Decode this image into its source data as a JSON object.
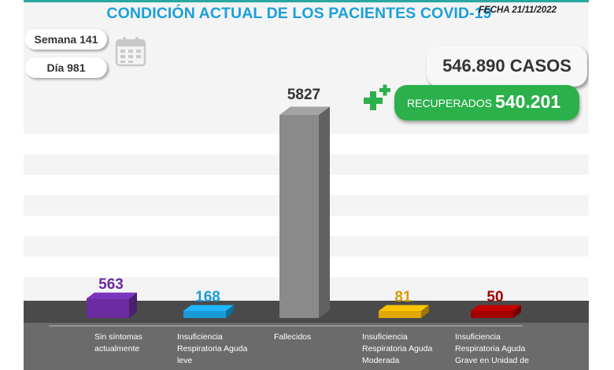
{
  "header": {
    "title": "CONDICIÓN ACTUAL DE LOS PACIENTES COVID-19",
    "date": "FECHA 21/11/2022"
  },
  "info": {
    "week": "Semana 141",
    "day": "Día 981"
  },
  "totals": {
    "cases": "546.890 CASOS",
    "recovered_label": "RECUPERADOS",
    "recovered_value": "540.201"
  },
  "icons": {
    "calendar": "calendar-icon",
    "plus": "plus-icon"
  },
  "colors": {
    "title": "#1aa0d8",
    "recovered_bg": "#2bb04a"
  },
  "chart_data": {
    "type": "bar",
    "categories": [
      [
        "Sin síntomas",
        "actualmente"
      ],
      [
        "Insuficiencia",
        "Respiratoria Aguda",
        "leve"
      ],
      [
        "Fallecidos"
      ],
      [
        "Insuficiencia",
        "Respiratoria Aguda",
        "Moderada"
      ],
      [
        "Insuficiencia",
        "Respiratoria Aguda",
        "Grave en Unidad de"
      ]
    ],
    "values": [
      563,
      168,
      5827,
      81,
      50
    ],
    "value_labels": [
      "563",
      "168",
      "5827",
      "81",
      "50"
    ],
    "colors": [
      "#6a2ca0",
      "#1a9ad6",
      "#8a8a8a",
      "#e0a800",
      "#a40000"
    ],
    "label_colors": [
      "#6a2ca0",
      "#1a9ad6",
      "#333333",
      "#d99a00",
      "#a40000"
    ],
    "ylim": [
      0,
      5827
    ]
  }
}
